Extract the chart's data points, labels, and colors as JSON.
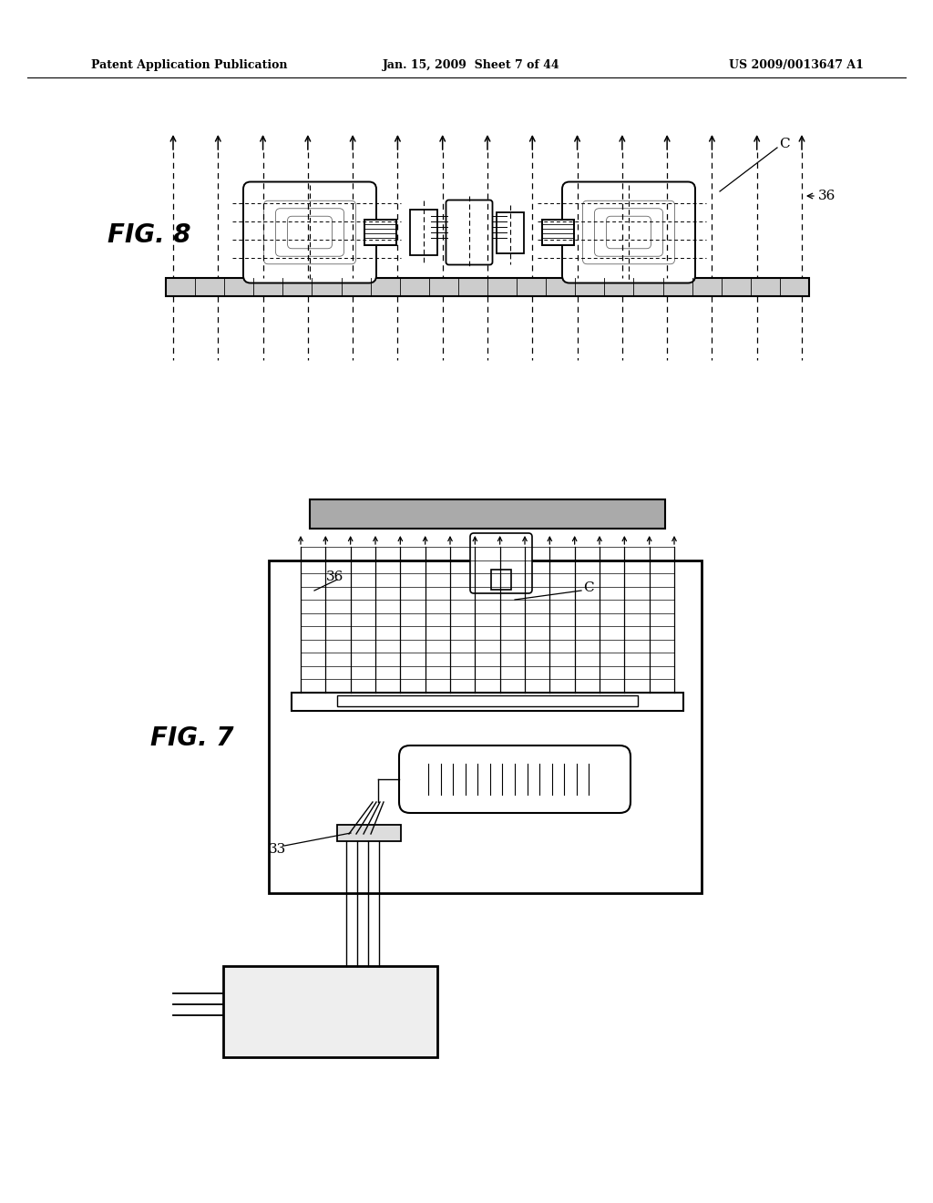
{
  "bg_color": "#ffffff",
  "text_color": "#000000",
  "header_left": "Patent Application Publication",
  "header_center": "Jan. 15, 2009  Sheet 7 of 44",
  "header_right": "US 2009/0013647 A1",
  "fig8_label": "FIG. 8",
  "fig7_label": "FIG. 7",
  "label_36_fig8": "36",
  "label_C_fig8": "C",
  "label_36_fig7": "36",
  "label_C_fig7": "C",
  "label_33_fig7": "33"
}
